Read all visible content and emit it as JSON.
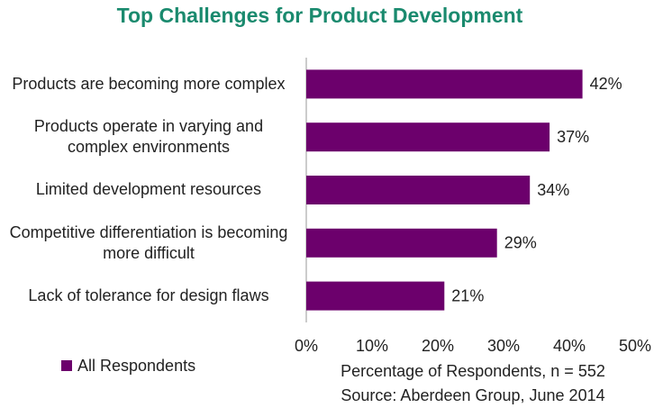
{
  "chart_data": {
    "type": "barh",
    "title": "Top Challenges for Product Development",
    "categories": [
      "Products are becoming more complex",
      "Products operate in varying and complex environments",
      "Limited development resources",
      "Competitive differentiation is becoming more difficult",
      "Lack of tolerance for design flaws"
    ],
    "series": [
      {
        "name": "All Respondents",
        "color": "#6c006c",
        "values": [
          42,
          37,
          34,
          29,
          21
        ],
        "value_labels": [
          "42%",
          "37%",
          "34%",
          "29%",
          "21%"
        ]
      }
    ],
    "xlim": [
      0,
      50
    ],
    "xticks": [
      {
        "value": 0,
        "label": "0%"
      },
      {
        "value": 10,
        "label": "10%"
      },
      {
        "value": 20,
        "label": "20%"
      },
      {
        "value": 30,
        "label": "30%"
      },
      {
        "value": 40,
        "label": "40%"
      },
      {
        "value": 50,
        "label": "50%"
      }
    ],
    "x_label": "Percentage of Respondents, n = 552",
    "source": "Source: Aberdeen Group, June 2014",
    "legend": "bottom-left"
  }
}
